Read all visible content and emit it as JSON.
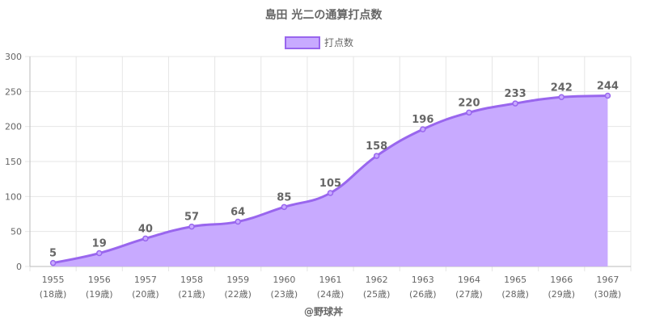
{
  "chart_data": {
    "type": "area",
    "title": "島田 光二の通算打点数",
    "legend": {
      "label": "打点数",
      "position": "top"
    },
    "categories": [
      "1955",
      "1956",
      "1957",
      "1958",
      "1959",
      "1960",
      "1961",
      "1962",
      "1963",
      "1964",
      "1965",
      "1966",
      "1967"
    ],
    "ages": [
      "(18歳)",
      "(19歳)",
      "(20歳)",
      "(21歳)",
      "(22歳)",
      "(23歳)",
      "(24歳)",
      "(25歳)",
      "(26歳)",
      "(27歳)",
      "(28歳)",
      "(29歳)",
      "(30歳)"
    ],
    "series": [
      {
        "name": "打点数",
        "values": [
          5,
          19,
          40,
          57,
          64,
          85,
          105,
          158,
          196,
          220,
          233,
          242,
          244
        ]
      }
    ],
    "yticks": [
      0,
      50,
      100,
      150,
      200,
      250,
      300
    ],
    "ylim": [
      0,
      300
    ],
    "grid": true,
    "colors": {
      "line": "#9966ee",
      "fill": "#c8aaff",
      "grid": "#e6e6e6",
      "axis": "#bbbbbb"
    }
  },
  "footer": "@野球丼"
}
